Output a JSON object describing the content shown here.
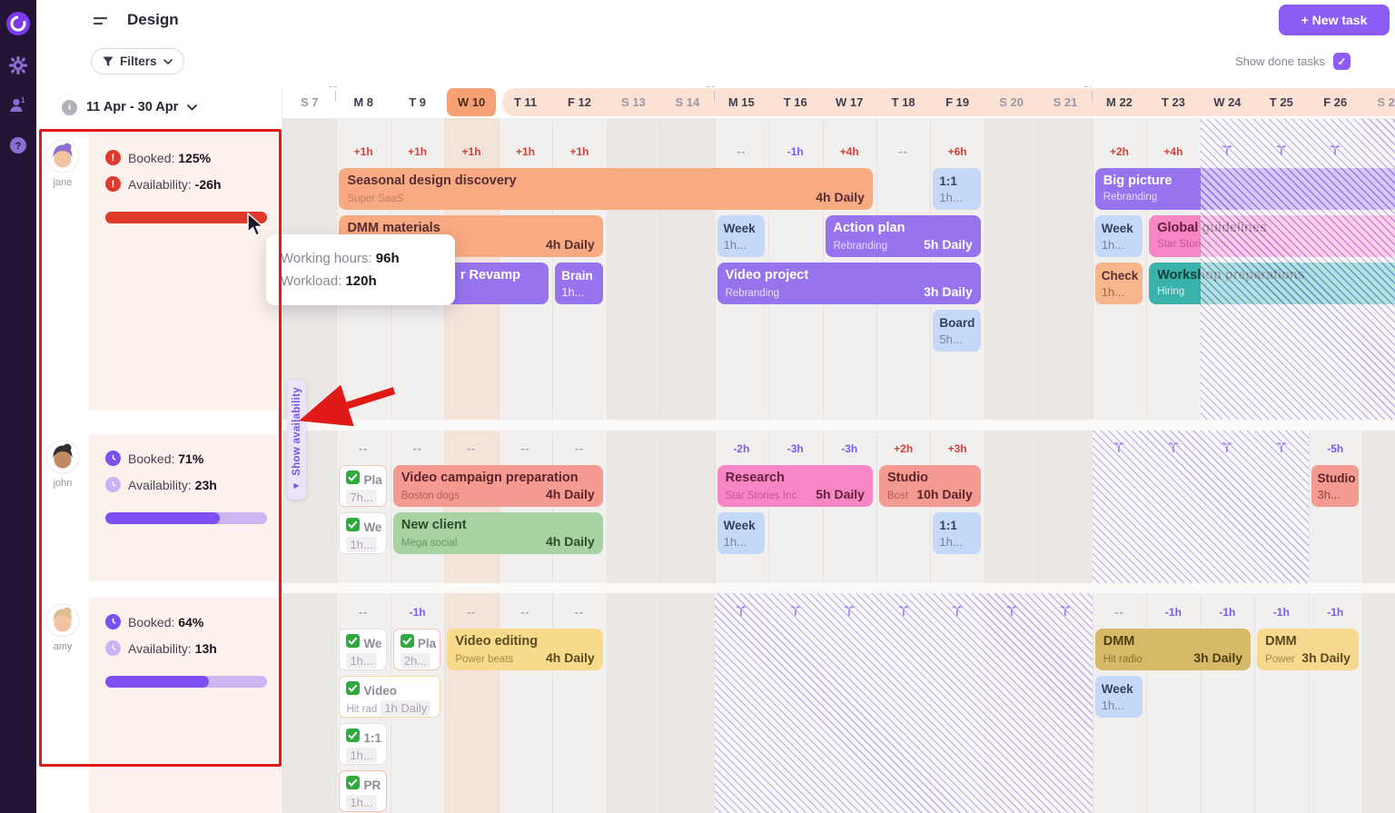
{
  "appbar": {
    "icons": [
      "logo",
      "gear",
      "team",
      "help"
    ]
  },
  "header": {
    "title": "Design",
    "new_task_label": "+ New task",
    "filters_label": "Filters",
    "show_done_label": "Show done tasks",
    "show_done_checked": true
  },
  "panel": {
    "date_range": "11 Apr - 30 Apr"
  },
  "tooltip": {
    "lines": [
      {
        "label": "Working hours:",
        "value": "96h"
      },
      {
        "label": "Workload:",
        "value": "120h"
      }
    ]
  },
  "show_availability_label": "Show availability",
  "colors": {
    "accent": "#8b5cf6",
    "danger": "#dc3a2e",
    "over": "#d6403a",
    "under": "#7a5af5",
    "progress_red": "#dd3a2c",
    "progress_purple": "#7e4ff2",
    "today_chip": "#f5a173"
  },
  "timeline": {
    "days": [
      {
        "label": "S 7",
        "weekend": true
      },
      {
        "label": "M 8",
        "week": "35"
      },
      {
        "label": "T 9"
      },
      {
        "label": "W 10",
        "today": true
      },
      {
        "label": "T 11",
        "range_start": true
      },
      {
        "label": "F 12"
      },
      {
        "label": "S 13",
        "weekend": true
      },
      {
        "label": "S 14",
        "weekend": true
      },
      {
        "label": "M 15",
        "week": "36"
      },
      {
        "label": "T 16"
      },
      {
        "label": "W 17"
      },
      {
        "label": "T 18"
      },
      {
        "label": "F 19"
      },
      {
        "label": "S 20",
        "weekend": true
      },
      {
        "label": "S 21",
        "weekend": true
      },
      {
        "label": "M 22",
        "week": "37"
      },
      {
        "label": "T 23"
      },
      {
        "label": "W 24"
      },
      {
        "label": "T 25"
      },
      {
        "label": "F 26"
      },
      {
        "label": "S 27",
        "weekend": true
      }
    ]
  },
  "members": [
    {
      "name": "jane",
      "avatar": {
        "hair": "#8d6fd8",
        "skin": "#f2c3a0"
      },
      "booked_label": "Booked:",
      "booked_value": "125%",
      "availability_label": "Availability:",
      "availability_value": "-26h",
      "alert": true,
      "progress": {
        "pct": 100,
        "color": "#dd3a2c"
      },
      "capacity": [
        {
          "d": 1,
          "t": "+1h"
        },
        {
          "d": 2,
          "t": "+1h"
        },
        {
          "d": 3,
          "t": "+1h"
        },
        {
          "d": 4,
          "t": "+1h"
        },
        {
          "d": 5,
          "t": "+1h"
        },
        {
          "d": 8,
          "t": "--"
        },
        {
          "d": 9,
          "t": "-1h"
        },
        {
          "d": 10,
          "t": "+4h"
        },
        {
          "d": 11,
          "t": "--"
        },
        {
          "d": 12,
          "t": "+6h"
        },
        {
          "d": 15,
          "t": "+2h"
        },
        {
          "d": 16,
          "t": "+4h"
        }
      ],
      "palms": [
        17,
        18,
        19
      ],
      "hatch": {
        "from": 17,
        "to": 20
      },
      "bars": [
        {
          "row": 0,
          "d": 1,
          "span": 10,
          "color": "orange",
          "kind": "wide",
          "title": "Seasonal design discovery",
          "sub": "Super SaaS",
          "right": "4h Daily"
        },
        {
          "row": 0,
          "d": 12,
          "span": 1,
          "color": "blue",
          "kind": "chip",
          "title": "1:1",
          "val": "1h..."
        },
        {
          "row": 0,
          "d": 15,
          "span": 6,
          "color": "purple",
          "kind": "wide",
          "title": "Big picture",
          "sub": "Rebranding"
        },
        {
          "row": 1,
          "d": 1,
          "span": 5,
          "color": "orange",
          "kind": "wide",
          "title": "DMM materials",
          "right": "4h Daily"
        },
        {
          "row": 1,
          "d": 8,
          "span": 1,
          "color": "blue",
          "kind": "chip",
          "title": "Week",
          "val": "1h..."
        },
        {
          "row": 1,
          "d": 10,
          "span": 3,
          "color": "purple",
          "kind": "wide",
          "title": "Action plan",
          "sub": "Rebranding",
          "right": "5h Daily"
        },
        {
          "row": 1,
          "d": 15,
          "span": 1,
          "color": "blue",
          "kind": "chip",
          "title": "Week",
          "val": "1h..."
        },
        {
          "row": 1,
          "d": 16,
          "span": 5,
          "color": "pink",
          "kind": "wide",
          "title": "Global guidelines",
          "sub": "Star Stories Inc."
        },
        {
          "row": 2,
          "d": 2,
          "span": 3,
          "color": "purple",
          "kind": "wide",
          "title": "r Revamp",
          "pad": 74
        },
        {
          "row": 2,
          "d": 5,
          "span": 1,
          "color": "purple",
          "kind": "chip",
          "title": "Brain",
          "val": "1h..."
        },
        {
          "row": 2,
          "d": 8,
          "span": 5,
          "color": "purple",
          "kind": "wide",
          "title": "Video project",
          "sub": "Rebranding",
          "right": "3h Daily"
        },
        {
          "row": 2,
          "d": 15,
          "span": 1,
          "color": "chip_orange",
          "kind": "chip",
          "title": "Check",
          "val": "1h..."
        },
        {
          "row": 2,
          "d": 16,
          "span": 5,
          "color": "teal",
          "kind": "wide",
          "title": "Workshop preparations",
          "sub": "Hiring"
        },
        {
          "row": 3,
          "d": 12,
          "span": 1,
          "color": "blue",
          "kind": "chip",
          "title": "Board",
          "val": "5h..."
        }
      ]
    },
    {
      "name": "john",
      "avatar": {
        "hair": "#362e33",
        "skin": "#c08a64"
      },
      "booked_label": "Booked:",
      "booked_value": "71%",
      "availability_label": "Availability:",
      "availability_value": "23h",
      "alert": false,
      "progress": {
        "pct": 71,
        "color": "#7e4ff2"
      },
      "capacity": [
        {
          "d": 1,
          "t": "--"
        },
        {
          "d": 2,
          "t": "--"
        },
        {
          "d": 3,
          "t": "--"
        },
        {
          "d": 4,
          "t": "--"
        },
        {
          "d": 5,
          "t": "--"
        },
        {
          "d": 8,
          "t": "-2h"
        },
        {
          "d": 9,
          "t": "-3h"
        },
        {
          "d": 10,
          "t": "-3h"
        },
        {
          "d": 11,
          "t": "+2h"
        },
        {
          "d": 12,
          "t": "+3h"
        },
        {
          "d": 19,
          "t": "-5h"
        }
      ],
      "palms": [
        15,
        16,
        17,
        18
      ],
      "hatch": {
        "from": 15,
        "to": 18
      },
      "bars": [
        {
          "row": 0,
          "d": 1,
          "span": 1,
          "kind": "done",
          "border": "#f2c4bb",
          "title": "Pla",
          "val": "7h..."
        },
        {
          "row": 0,
          "d": 2,
          "span": 4,
          "color": "salmon",
          "kind": "wide",
          "title": "Video campaign preparation",
          "sub": "Boston dogs",
          "right": "4h Daily"
        },
        {
          "row": 0,
          "d": 8,
          "span": 3,
          "color": "pink",
          "kind": "wide",
          "title": "Research",
          "sub": "Star Stories Inc.",
          "right": "5h Daily"
        },
        {
          "row": 0,
          "d": 11,
          "span": 2,
          "color": "salmon",
          "kind": "wide",
          "title": "Studio",
          "sub": "Bost",
          "right": "10h Daily"
        },
        {
          "row": 0,
          "d": 19,
          "span": 1,
          "color": "salmon",
          "kind": "chip",
          "title": "Studio",
          "val": "3h..."
        },
        {
          "row": 1,
          "d": 1,
          "span": 1,
          "kind": "done",
          "border": "#e4e1e6",
          "title": "We",
          "val": "1h..."
        },
        {
          "row": 1,
          "d": 2,
          "span": 4,
          "color": "green",
          "kind": "wide",
          "title": "New client",
          "sub": "Mega social",
          "right": "4h Daily"
        },
        {
          "row": 1,
          "d": 8,
          "span": 1,
          "color": "blue",
          "kind": "chip",
          "title": "Week",
          "val": "1h..."
        },
        {
          "row": 1,
          "d": 12,
          "span": 1,
          "color": "blue",
          "kind": "chip",
          "title": "1:1",
          "val": "1h..."
        }
      ]
    },
    {
      "name": "amy",
      "avatar": {
        "hair": "#dcbd8e",
        "skin": "#f2c3a0"
      },
      "booked_label": "Booked:",
      "booked_value": "64%",
      "availability_label": "Availability:",
      "availability_value": "13h",
      "alert": false,
      "progress": {
        "pct": 64,
        "color": "#7e4ff2"
      },
      "capacity": [
        {
          "d": 1,
          "t": "--"
        },
        {
          "d": 2,
          "t": "-1h"
        },
        {
          "d": 3,
          "t": "--"
        },
        {
          "d": 4,
          "t": "--"
        },
        {
          "d": 5,
          "t": "--"
        },
        {
          "d": 15,
          "t": "--"
        },
        {
          "d": 16,
          "t": "-1h"
        },
        {
          "d": 17,
          "t": "-1h"
        },
        {
          "d": 18,
          "t": "-1h"
        },
        {
          "d": 19,
          "t": "-1h"
        }
      ],
      "palms": [
        8,
        9,
        10,
        11,
        12,
        13,
        14
      ],
      "hatch": {
        "from": 8,
        "to": 14
      },
      "bars": [
        {
          "row": 0,
          "d": 1,
          "span": 1,
          "kind": "done",
          "border": "#e4e1e6",
          "title": "We",
          "val": "1h..."
        },
        {
          "row": 0,
          "d": 2,
          "span": 1,
          "kind": "done",
          "border": "#f2c4bb",
          "title": "Pla",
          "val": "2h..."
        },
        {
          "row": 0,
          "d": 3,
          "span": 3,
          "color": "yellow",
          "kind": "wide",
          "title": "Video editing",
          "sub": "Power beats",
          "right": "4h Daily"
        },
        {
          "row": 0,
          "d": 15,
          "span": 3,
          "color": "olive",
          "kind": "wide",
          "title": "DMM",
          "sub": "Hit radio",
          "right": "3h Daily"
        },
        {
          "row": 0,
          "d": 18,
          "span": 2,
          "color": "lightyellow",
          "kind": "wide",
          "title": "DMM",
          "sub": "Power",
          "right": "3h Daily"
        },
        {
          "row": 1,
          "d": 1,
          "span": 2,
          "kind": "done",
          "border": "#eed9a8",
          "title": "Video",
          "sub": "Hit rad",
          "val": "1h Daily"
        },
        {
          "row": 1,
          "d": 15,
          "span": 1,
          "color": "blue",
          "kind": "chip",
          "title": "Week",
          "val": "1h..."
        },
        {
          "row": 2,
          "d": 1,
          "span": 1,
          "kind": "done",
          "border": "#e4e1e6",
          "title": "1:1",
          "val": "1h..."
        },
        {
          "row": 3,
          "d": 1,
          "span": 1,
          "kind": "done",
          "border": "#f0bfa4",
          "title": "PR",
          "val": "1h..."
        }
      ]
    }
  ]
}
